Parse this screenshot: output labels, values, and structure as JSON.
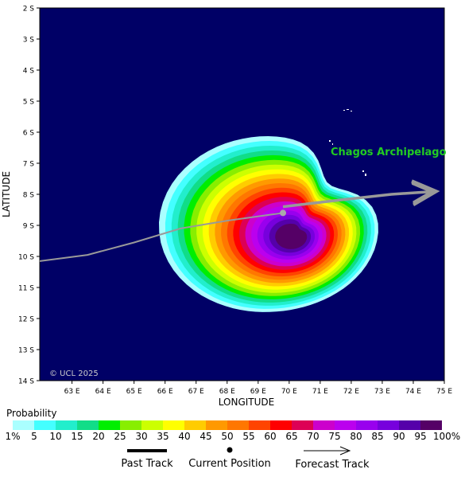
{
  "map": {
    "lat_labels": [
      "2 S",
      "3 S",
      "4 S",
      "5 S",
      "6 S",
      "7 S",
      "8 S",
      "9 S",
      "10 S",
      "11 S",
      "12 S",
      "13 S",
      "14 S"
    ],
    "lat_values": [
      2,
      3,
      4,
      5,
      6,
      7,
      8,
      9,
      10,
      11,
      12,
      13,
      14
    ],
    "lon_labels": [
      "63 E",
      "64 E",
      "65 E",
      "66 E",
      "67 E",
      "68 E",
      "69 E",
      "70 E",
      "71 E",
      "72 E",
      "73 E",
      "74 E",
      "75 E"
    ],
    "lon_values": [
      63,
      64,
      65,
      66,
      67,
      68,
      69,
      70,
      71,
      72,
      73,
      74,
      75
    ],
    "lon_range": [
      61.96,
      75.0
    ],
    "lat_range": [
      2.0,
      14.0
    ],
    "ylabel": "LATITUDE",
    "xlabel": "LONGITUDE",
    "place_label": "Chagos Archipelago",
    "copyright": "© UCL 2025",
    "ocean_color": "#000066",
    "place_label_color": "#22cc22",
    "current_position": {
      "lon": 69.8,
      "lat": 8.6
    },
    "past_track": [
      [
        61.96,
        10.15
      ],
      [
        63.5,
        9.95
      ],
      [
        65.0,
        9.55
      ],
      [
        66.5,
        9.1
      ],
      [
        68.0,
        8.85
      ],
      [
        69.8,
        8.6
      ]
    ],
    "forecast_track": [
      [
        69.8,
        8.4
      ],
      [
        71.5,
        8.2
      ],
      [
        73.3,
        8.0
      ],
      [
        74.5,
        7.92
      ]
    ]
  },
  "legend": {
    "title": "Probability",
    "labels": [
      "1%",
      "5",
      "10",
      "15",
      "20",
      "25",
      "30",
      "35",
      "40",
      "45",
      "50",
      "55",
      "60",
      "65",
      "70",
      "75",
      "80",
      "85",
      "90",
      "95",
      "100%"
    ],
    "colors": [
      "#aaffff",
      "#44ffff",
      "#22eecc",
      "#11dd88",
      "#00ee00",
      "#88ee00",
      "#ccff00",
      "#ffff00",
      "#ffcc00",
      "#ff9900",
      "#ff7700",
      "#ff4400",
      "#ff0000",
      "#dd0055",
      "#cc00cc",
      "#bb00ee",
      "#9900ee",
      "#7700dd",
      "#5500aa",
      "#550066"
    ]
  },
  "track_legend": {
    "past_label": "Past Track",
    "current_label": "Current Position",
    "forecast_label": "Forecast Track"
  }
}
